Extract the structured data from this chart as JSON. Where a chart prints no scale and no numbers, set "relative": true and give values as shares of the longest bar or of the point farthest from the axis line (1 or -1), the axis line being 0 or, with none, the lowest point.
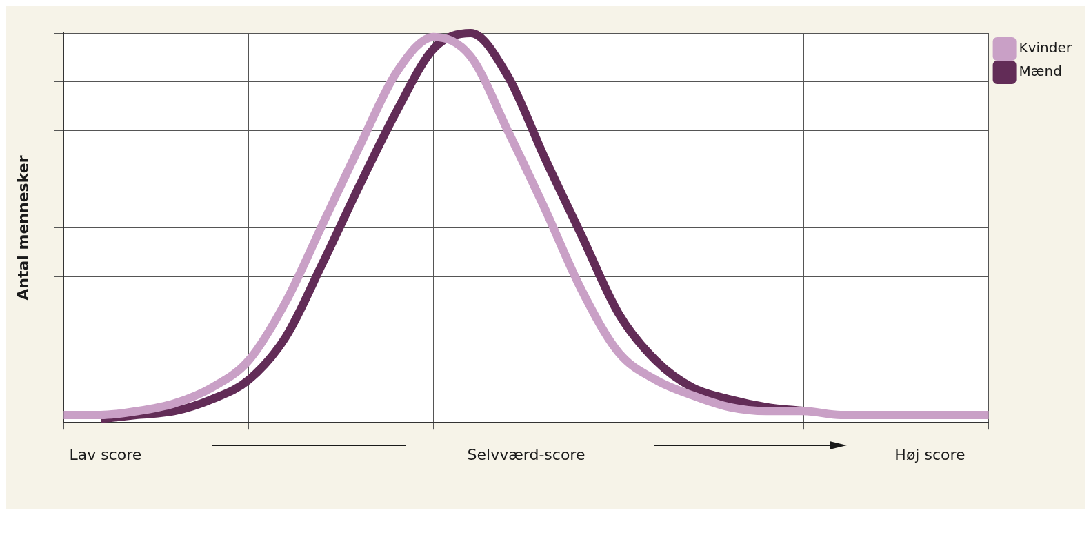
{
  "chart_data": {
    "type": "line",
    "relative": true,
    "xlabel": "Selvværd-score",
    "ylabel": "Antal mennesker",
    "annotations": [
      "Lav score",
      "Høj score"
    ],
    "grid": true,
    "legend": "top right",
    "marker": "none",
    "line_style": "solid",
    "categories": [
      null,
      null,
      null,
      null,
      null,
      null,
      null,
      null,
      null,
      null,
      null,
      null,
      null,
      null,
      null,
      null,
      null,
      null,
      null,
      null,
      null,
      null,
      null,
      null,
      null,
      null
    ],
    "series": [
      {
        "name": "Kvinder",
        "color": "#c9a0c6",
        "values": [
          0.02,
          0.02,
          0.03,
          0.05,
          0.09,
          0.16,
          0.31,
          0.51,
          0.71,
          0.9,
          0.99,
          0.94,
          0.75,
          0.55,
          0.34,
          0.18,
          0.11,
          0.07,
          0.04,
          0.03,
          0.03,
          0.02,
          0.02,
          0.02,
          0.02,
          0.02
        ]
      },
      {
        "name": "Mænd",
        "color": "#622c57",
        "values": [
          null,
          0.01,
          0.02,
          0.03,
          0.06,
          0.11,
          0.22,
          0.41,
          0.61,
          0.8,
          0.96,
          1.0,
          0.89,
          0.68,
          0.48,
          0.28,
          0.16,
          0.09,
          0.06,
          0.04,
          0.03,
          null,
          null,
          null,
          null,
          null
        ]
      }
    ]
  }
}
